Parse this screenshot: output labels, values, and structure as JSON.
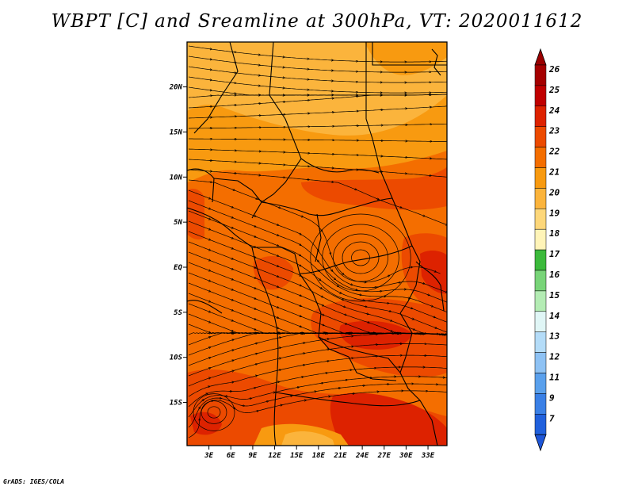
{
  "title": "WBPT [C] and Sreamline at 300hPa, VT: 2020011612",
  "credit": "GrADS: IGES/COLA",
  "lat_ticks": [
    {
      "lat": 20,
      "label": "20N"
    },
    {
      "lat": 15,
      "label": "15N"
    },
    {
      "lat": 10,
      "label": "10N"
    },
    {
      "lat": 5,
      "label": "5N"
    },
    {
      "lat": 0,
      "label": "EQ"
    },
    {
      "lat": -5,
      "label": "5S"
    },
    {
      "lat": -10,
      "label": "10S"
    },
    {
      "lat": -15,
      "label": "15S"
    }
  ],
  "lon_ticks": [
    {
      "lon": 3,
      "label": "3E"
    },
    {
      "lon": 6,
      "label": "6E"
    },
    {
      "lon": 9,
      "label": "9E"
    },
    {
      "lon": 12,
      "label": "12E"
    },
    {
      "lon": 15,
      "label": "15E"
    },
    {
      "lon": 18,
      "label": "18E"
    },
    {
      "lon": 21,
      "label": "21E"
    },
    {
      "lon": 24,
      "label": "24E"
    },
    {
      "lon": 27,
      "label": "27E"
    },
    {
      "lon": 30,
      "label": "30E"
    },
    {
      "lon": 33,
      "label": "33E"
    }
  ],
  "colorbar": {
    "levels": [
      {
        "label": "26",
        "color": "#a50000"
      },
      {
        "label": "25",
        "color": "#c00000"
      },
      {
        "label": "24",
        "color": "#dd2200"
      },
      {
        "label": "23",
        "color": "#ec4a00"
      },
      {
        "label": "22",
        "color": "#f46e00"
      },
      {
        "label": "21",
        "color": "#f89a10"
      },
      {
        "label": "20",
        "color": "#fbb43c"
      },
      {
        "label": "19",
        "color": "#fdd77a"
      },
      {
        "label": "18",
        "color": "#fff4b8"
      },
      {
        "label": "17",
        "color": "#3cba3c"
      },
      {
        "label": "16",
        "color": "#78d478"
      },
      {
        "label": "15",
        "color": "#b4ecb4"
      },
      {
        "label": "14",
        "color": "#e0f6f6"
      },
      {
        "label": "13",
        "color": "#b4dcf8"
      },
      {
        "label": "12",
        "color": "#8ec2f4"
      },
      {
        "label": "11",
        "color": "#5aa0ec"
      },
      {
        "label": "9",
        "color": "#3a80e6"
      },
      {
        "label": "7",
        "color": "#2060dc"
      }
    ],
    "under_color": "#1e56d8",
    "over_color": "#9a0000"
  }
}
